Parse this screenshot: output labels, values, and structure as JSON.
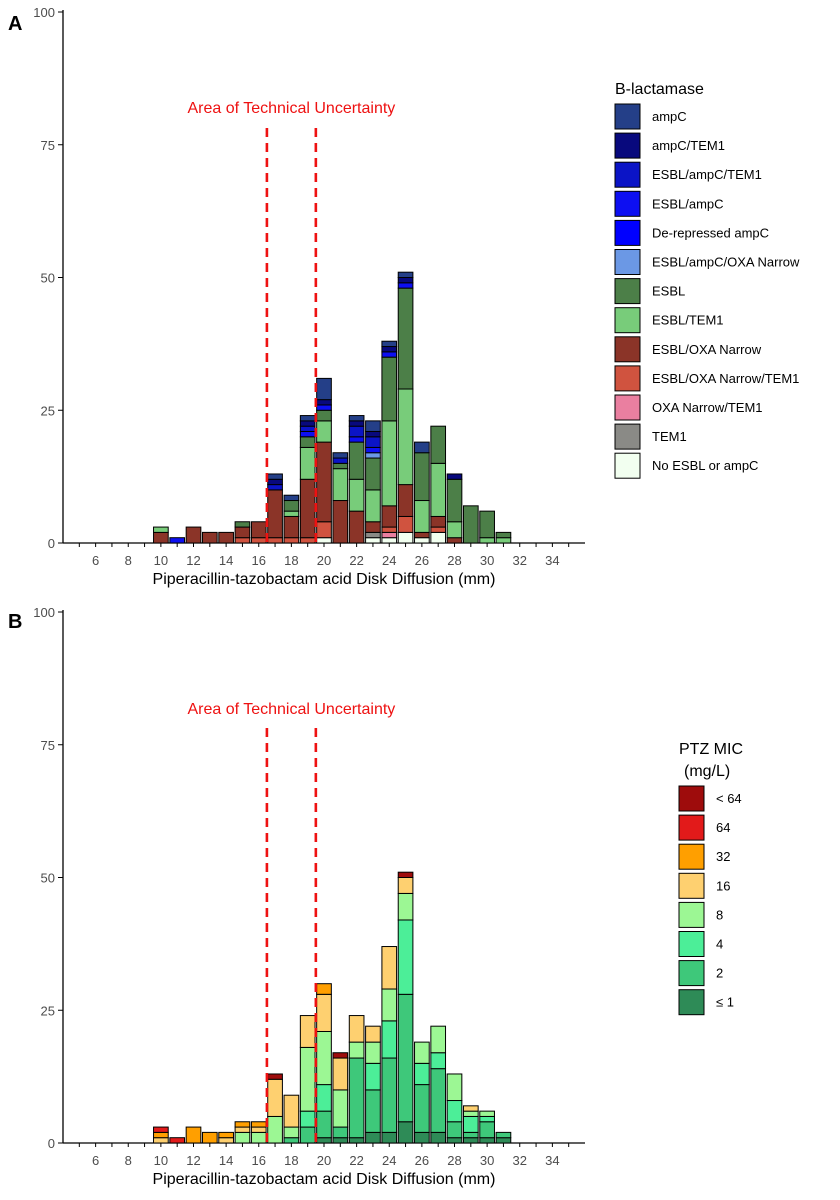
{
  "chart_data": [
    {
      "panel_label": "A",
      "type": "bar",
      "stacked": true,
      "xlabel": "Piperacillin-tazobactam acid Disk Diffusion (mm)",
      "ylabel": "",
      "x_ticks": [
        6,
        8,
        10,
        12,
        14,
        16,
        18,
        20,
        22,
        24,
        26,
        28,
        30,
        32,
        34
      ],
      "y_ticks": [
        0,
        25,
        50,
        75,
        100
      ],
      "xlim": [
        4,
        36
      ],
      "ylim": [
        0,
        100
      ],
      "categories": [
        10,
        11,
        12,
        13,
        14,
        15,
        16,
        17,
        18,
        19,
        20,
        21,
        22,
        23,
        24,
        25,
        26,
        27,
        28,
        29,
        30,
        31
      ],
      "reference_lines": {
        "x": [
          16.5,
          19.5
        ],
        "style": "dashed",
        "color": "#ee1111"
      },
      "annotation": "Area of Technical Uncertainty",
      "legend_title": "B-lactamase",
      "series": [
        {
          "name": "No ESBL or ampC",
          "color": "#f2fff0",
          "values": [
            0,
            0,
            0,
            0,
            0,
            0,
            0,
            0,
            0,
            0,
            1,
            0,
            0,
            1,
            1,
            2,
            1,
            2,
            0,
            0,
            0,
            0
          ]
        },
        {
          "name": "TEM1",
          "color": "#8a8a86",
          "values": [
            0,
            0,
            0,
            0,
            0,
            0,
            0,
            0,
            0,
            0,
            0,
            0,
            0,
            1,
            0,
            0,
            0,
            0,
            0,
            0,
            0,
            0
          ]
        },
        {
          "name": "OXA Narrow/TEM1",
          "color": "#ea7fa0",
          "values": [
            0,
            0,
            0,
            0,
            0,
            0,
            0,
            0,
            0,
            0,
            0,
            0,
            0,
            0,
            1,
            0,
            0,
            0,
            0,
            0,
            0,
            0
          ]
        },
        {
          "name": "ESBL/OXA Narrow/TEM1",
          "color": "#d0533f",
          "values": [
            0,
            0,
            0,
            0,
            0,
            1,
            1,
            1,
            1,
            1,
            3,
            0,
            0,
            0,
            1,
            3,
            0,
            1,
            0,
            0,
            0,
            0
          ]
        },
        {
          "name": "ESBL/OXA Narrow",
          "color": "#8b3428",
          "values": [
            2,
            0,
            3,
            2,
            2,
            2,
            3,
            9,
            4,
            11,
            15,
            8,
            6,
            2,
            4,
            6,
            1,
            2,
            1,
            0,
            0,
            0
          ]
        },
        {
          "name": "ESBL/TEM1",
          "color": "#78cc7a",
          "values": [
            1,
            0,
            0,
            0,
            0,
            0,
            0,
            0,
            1,
            6,
            4,
            6,
            6,
            6,
            16,
            18,
            6,
            10,
            3,
            0,
            1,
            1
          ]
        },
        {
          "name": "ESBL",
          "color": "#4c7f48",
          "values": [
            0,
            0,
            0,
            0,
            0,
            1,
            0,
            0,
            2,
            2,
            2,
            1,
            7,
            6,
            12,
            19,
            9,
            7,
            8,
            7,
            5,
            1
          ]
        },
        {
          "name": "ESBL/ampC/OXA Narrow",
          "color": "#6b98e5",
          "values": [
            0,
            0,
            0,
            0,
            0,
            0,
            0,
            0,
            0,
            0,
            0,
            0,
            0,
            1,
            0,
            0,
            0,
            0,
            0,
            0,
            0,
            0
          ]
        },
        {
          "name": "De-repressed ampC",
          "color": "#0000ff",
          "values": [
            0,
            0,
            0,
            0,
            0,
            0,
            0,
            0,
            0,
            0,
            0,
            0,
            0,
            0,
            0,
            0,
            0,
            0,
            0,
            0,
            0,
            0
          ]
        },
        {
          "name": "ESBL/ampC",
          "color": "#0d0ff2",
          "values": [
            0,
            1,
            0,
            0,
            0,
            0,
            0,
            0,
            0,
            1,
            1,
            0,
            1,
            1,
            1,
            1,
            0,
            0,
            0,
            0,
            0,
            0
          ]
        },
        {
          "name": "ESBL/ampC/TEM1",
          "color": "#0b14c6",
          "values": [
            0,
            0,
            0,
            0,
            0,
            0,
            0,
            1,
            0,
            1,
            0,
            1,
            2,
            2,
            0,
            0,
            0,
            0,
            0,
            0,
            0,
            0
          ]
        },
        {
          "name": "ampC/TEM1",
          "color": "#08097d",
          "values": [
            0,
            0,
            0,
            0,
            0,
            0,
            0,
            1,
            0,
            1,
            1,
            0,
            1,
            1,
            1,
            1,
            0,
            0,
            1,
            0,
            0,
            0
          ]
        },
        {
          "name": "ampC",
          "color": "#243f88",
          "values": [
            0,
            0,
            0,
            0,
            0,
            0,
            0,
            1,
            1,
            1,
            4,
            1,
            1,
            2,
            1,
            1,
            2,
            0,
            0,
            0,
            0,
            0
          ]
        }
      ]
    },
    {
      "panel_label": "B",
      "type": "bar",
      "stacked": true,
      "xlabel": "Piperacillin-tazobactam acid Disk Diffusion (mm)",
      "ylabel": "",
      "x_ticks": [
        6,
        8,
        10,
        12,
        14,
        16,
        18,
        20,
        22,
        24,
        26,
        28,
        30,
        32,
        34
      ],
      "y_ticks": [
        0,
        25,
        50,
        75,
        100
      ],
      "xlim": [
        4,
        36
      ],
      "ylim": [
        0,
        100
      ],
      "categories": [
        10,
        11,
        12,
        13,
        14,
        15,
        16,
        17,
        18,
        19,
        20,
        21,
        22,
        23,
        24,
        25,
        26,
        27,
        28,
        29,
        30,
        31
      ],
      "reference_lines": {
        "x": [
          16.5,
          19.5
        ],
        "style": "dashed",
        "color": "#ee1111"
      },
      "annotation": "Area of Technical Uncertainty",
      "legend_title": "PTZ MIC\n(mg/L)",
      "series": [
        {
          "name": "≤ 1",
          "color": "#2e8b57",
          "values": [
            0,
            0,
            0,
            0,
            0,
            0,
            0,
            0,
            0,
            0,
            1,
            1,
            1,
            2,
            2,
            4,
            2,
            2,
            1,
            1,
            1,
            1
          ]
        },
        {
          "name": "2",
          "color": "#3ec87a",
          "values": [
            0,
            0,
            0,
            0,
            0,
            0,
            0,
            0,
            1,
            3,
            5,
            2,
            15,
            8,
            14,
            24,
            9,
            12,
            3,
            1,
            3,
            1
          ]
        },
        {
          "name": "4",
          "color": "#4cee98",
          "values": [
            0,
            0,
            0,
            0,
            0,
            0,
            0,
            0,
            0,
            3,
            5,
            0,
            0,
            5,
            7,
            14,
            4,
            3,
            4,
            3,
            1,
            0
          ]
        },
        {
          "name": "8",
          "color": "#9cf794",
          "values": [
            0,
            0,
            0,
            0,
            0,
            2,
            2,
            5,
            2,
            12,
            10,
            7,
            3,
            4,
            6,
            5,
            4,
            5,
            5,
            1,
            1,
            0
          ]
        },
        {
          "name": "16",
          "color": "#fed070",
          "values": [
            1,
            0,
            0,
            0,
            1,
            1,
            1,
            7,
            6,
            6,
            7,
            6,
            5,
            3,
            8,
            3,
            0,
            0,
            0,
            1,
            0,
            0
          ]
        },
        {
          "name": "32",
          "color": "#ff9f00",
          "values": [
            1,
            0,
            3,
            2,
            1,
            1,
            1,
            0,
            0,
            0,
            2,
            0,
            0,
            0,
            0,
            0,
            0,
            0,
            0,
            0,
            0,
            0
          ]
        },
        {
          "name": "64",
          "color": "#e21a1a",
          "values": [
            1,
            1,
            0,
            0,
            0,
            0,
            0,
            0,
            0,
            0,
            0,
            0,
            0,
            0,
            0,
            0,
            0,
            0,
            0,
            0,
            0,
            0
          ]
        },
        {
          "name": "< 64",
          "color": "#9e0c0c",
          "values": [
            0,
            0,
            0,
            0,
            0,
            0,
            0,
            1,
            0,
            0,
            0,
            1,
            0,
            0,
            0,
            1,
            0,
            0,
            0,
            0,
            0,
            0
          ]
        }
      ]
    }
  ]
}
